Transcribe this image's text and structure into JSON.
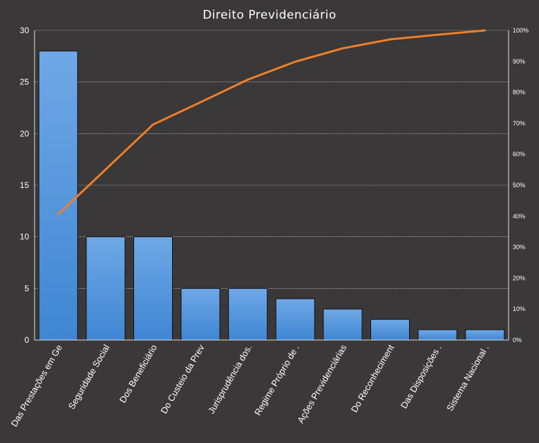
{
  "chart_data": {
    "type": "bar",
    "title": "Direito Previdenciário",
    "categories": [
      "Das Prestações em Ge",
      "Seguridade Social",
      "Dos Beneficiário",
      "Do Custeio da Prev",
      "Jurisprudência dos.",
      "Regime Próprio de .",
      "Ações Previdenciárias",
      "Do Reconheciment",
      "Das Disposições .",
      "Sistema Nacional ."
    ],
    "series": [
      {
        "type": "bar",
        "values": [
          28,
          10,
          10,
          5,
          5,
          4,
          3,
          2,
          1,
          1
        ],
        "color": "#4a90d9"
      },
      {
        "type": "line",
        "axis": "secondary",
        "values": [
          40.6,
          55.1,
          69.6,
          76.8,
          84.1,
          89.9,
          94.2,
          97.1,
          98.6,
          100
        ],
        "color": "#f07f2a"
      }
    ],
    "ylim": [
      0,
      30
    ],
    "yticks": [
      "0",
      "5",
      "10",
      "15",
      "20",
      "25",
      "30"
    ],
    "y2lim": [
      0,
      100
    ],
    "y2ticks": [
      "0%",
      "10%",
      "20%",
      "30%",
      "40%",
      "50%",
      "60%",
      "70%",
      "80%",
      "90%",
      "100%"
    ],
    "grid": true,
    "xlabel": "",
    "ylabel": ""
  }
}
